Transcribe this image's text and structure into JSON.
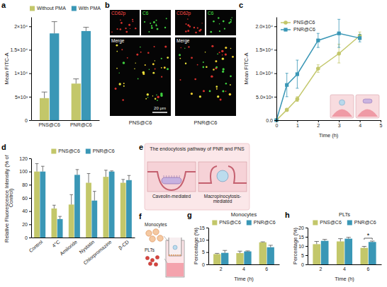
{
  "chart_data": [
    {
      "panel": "a",
      "type": "bar",
      "categories": [
        "PNS@C6",
        "PNR@C6"
      ],
      "y_label": "Mean FITC-A",
      "series": [
        {
          "name": "Without PMA",
          "color": "#c3c76a",
          "values": [
            4700,
            7800
          ],
          "errors": [
            1300,
            1000
          ]
        },
        {
          "name": "With PMA",
          "color": "#3a97b6",
          "values": [
            18500,
            19000
          ],
          "errors": [
            2500,
            800
          ]
        }
      ],
      "ylim": [
        0,
        22000
      ],
      "yticks": [
        0,
        {
          "value": 5000,
          "label": "5×10³"
        },
        {
          "value": 10000,
          "label": "1×10⁴"
        },
        {
          "value": 15000,
          "label": "1.5×10⁴"
        },
        {
          "value": 20000,
          "label": "2×10⁴"
        }
      ],
      "legend": "top"
    },
    {
      "panel": "c",
      "type": "line",
      "x": [
        0,
        0.5,
        1,
        2,
        3,
        4
      ],
      "x_label": "Time (h)",
      "y_label": "Mean FITC-A",
      "series": [
        {
          "name": "PNS@C6",
          "color": "#c3c76a",
          "marker": "circle",
          "values": [
            0,
            2200,
            4500,
            11000,
            14200,
            18000
          ],
          "errors": [
            0,
            300,
            500,
            800,
            2000,
            800
          ]
        },
        {
          "name": "PNR@C6",
          "color": "#3a97b6",
          "marker": "square",
          "values": [
            0,
            7500,
            9800,
            17000,
            18500,
            17500
          ],
          "errors": [
            0,
            2500,
            3000,
            1500,
            3000,
            800
          ]
        }
      ],
      "xlim": [
        0,
        5
      ],
      "xticks": [
        0,
        1,
        2,
        3,
        4,
        5
      ],
      "ylim": [
        0,
        22000
      ],
      "yticks": [
        {
          "value": 0,
          "label": "0.0"
        },
        {
          "value": 5000,
          "label": "5.0×10³"
        },
        {
          "value": 10000,
          "label": "1.0×10⁴"
        },
        {
          "value": 15000,
          "label": "1.5×10⁴"
        },
        {
          "value": 20000,
          "label": "2.0×10⁴"
        }
      ],
      "legend": "top-left"
    },
    {
      "panel": "d",
      "type": "bar",
      "categories": [
        "Control",
        "4°C",
        "Amiloride",
        "Nystatin",
        "Chlorpromazine",
        "β-CD"
      ],
      "y_label": "Relative Fluorescence Intensity (% of Control)",
      "series": [
        {
          "name": "PNS@C6",
          "color": "#c3c76a",
          "values": [
            100,
            44,
            50,
            83,
            92,
            83
          ],
          "errors": [
            12,
            5,
            15,
            14,
            10,
            5
          ]
        },
        {
          "name": "PNR@C6",
          "color": "#3a97b6",
          "values": [
            100,
            28,
            95,
            56,
            100,
            87
          ],
          "errors": [
            8,
            4,
            8,
            14,
            1,
            7
          ]
        }
      ],
      "ylim": [
        0,
        120
      ],
      "yticks": [
        0,
        20,
        40,
        60,
        80,
        100,
        120
      ],
      "legend": "top"
    },
    {
      "panel": "g",
      "type": "bar",
      "title": "Monocytes",
      "categories": [
        "2",
        "4",
        "6"
      ],
      "x_label": "Time (h)",
      "y_label": "Percentage (%)",
      "series": [
        {
          "name": "PNS@C6",
          "color": "#c3c76a",
          "values": [
            4.2,
            4.6,
            9.0
          ],
          "errors": [
            0.3,
            0.8,
            0.2
          ]
        },
        {
          "name": "PNR@C6",
          "color": "#3a97b6",
          "values": [
            4.7,
            5.3,
            7.0
          ],
          "errors": [
            1.0,
            0.2,
            0.8
          ]
        }
      ],
      "ylim": [
        0,
        15
      ],
      "yticks": [
        0,
        5,
        10,
        15
      ],
      "legend": "top"
    },
    {
      "panel": "h",
      "type": "bar",
      "title": "PLTs",
      "categories": [
        "2",
        "4",
        "6"
      ],
      "x_label": "Time (h)",
      "y_label": "Percentage (%)",
      "series": [
        {
          "name": "PNS@C6",
          "color": "#c3c76a",
          "values": [
            11.0,
            12.5,
            9.0
          ],
          "errors": [
            1.5,
            1.5,
            0.8
          ]
        },
        {
          "name": "PNR@C6",
          "color": "#3a97b6",
          "values": [
            12.8,
            14.0,
            12.2
          ],
          "errors": [
            0.8,
            0.7,
            0.5
          ]
        }
      ],
      "ylim": [
        0,
        20
      ],
      "yticks": [
        0,
        5,
        10,
        15,
        20
      ],
      "legend": "top",
      "annotations": [
        {
          "text": "*",
          "category": "6"
        }
      ]
    }
  ],
  "figure": {
    "b": {
      "panel": "b",
      "groups": [
        {
          "title": "PNS@C6",
          "channels": [
            "CD62p",
            "C6"
          ],
          "merge": "Merge"
        },
        {
          "title": "PNR@C6",
          "channels": [
            "CD62p",
            "C6"
          ],
          "merge": "Merge"
        }
      ],
      "scale_bar": "20 μm"
    },
    "e": {
      "panel": "e",
      "title": "The endocytosis pathway of PNR and PNS",
      "pathways": [
        "Caveolin-mediated",
        "Macropinocytosis-mediated"
      ]
    },
    "f": {
      "panel": "f",
      "cells": [
        "Monocytes",
        "PLTs"
      ]
    }
  }
}
